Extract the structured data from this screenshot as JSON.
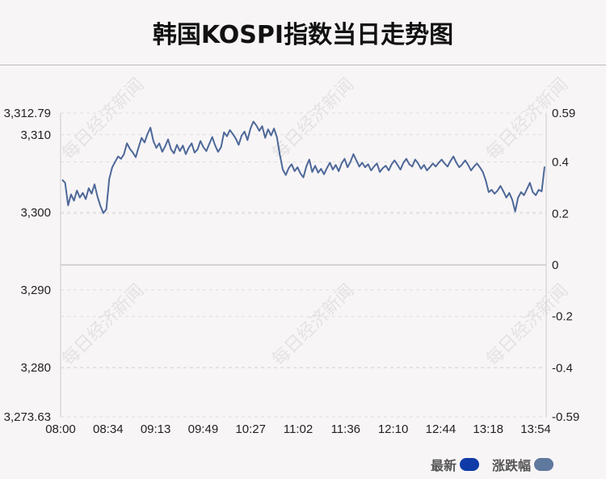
{
  "title": "韩国KOSPI指数当日走势图",
  "watermark_text": "每日经济新闻",
  "legend": [
    {
      "label": "最新",
      "color": "#0f3aa8"
    },
    {
      "label": "涨跌幅",
      "color": "#5f789e"
    }
  ],
  "colors": {
    "line": "#4d6898",
    "grid": "#dedede",
    "zero_line": "#c8c8c8",
    "axis": "#cccccc",
    "text": "#222222"
  },
  "chart_data": {
    "type": "line",
    "title": "韩国KOSPI指数当日走势图",
    "x_tick_labels": [
      "08:00",
      "08:34",
      "09:13",
      "09:49",
      "10:27",
      "11:02",
      "11:36",
      "12:10",
      "12:44",
      "13:18",
      "13:54"
    ],
    "y_left": {
      "ticks": [
        "3,312.79",
        "3,310",
        "3,300",
        "3,290",
        "3,280",
        "3,273.63"
      ],
      "tick_values": [
        3312.79,
        3310,
        3300,
        3290,
        3280,
        3273.63
      ],
      "range": [
        3273.63,
        3312.79
      ]
    },
    "y_right": {
      "ticks": [
        "0.59",
        "0.4",
        "0.2",
        "0",
        "-0.2",
        "-0.4",
        "-0.59"
      ],
      "tick_values": [
        0.59,
        0.4,
        0.2,
        0,
        -0.2,
        -0.4,
        -0.59
      ],
      "range": [
        -0.59,
        0.59
      ],
      "unit": "%"
    },
    "grid": true,
    "series": [
      {
        "name": "最新",
        "x_start": "08:00",
        "x_end": "13:54",
        "values": [
          3304.2,
          3303.8,
          3300.9,
          3302.3,
          3301.5,
          3302.8,
          3301.9,
          3302.5,
          3301.7,
          3303.1,
          3302.4,
          3303.6,
          3302.0,
          3300.8,
          3299.9,
          3300.4,
          3304.3,
          3305.8,
          3306.5,
          3307.2,
          3306.9,
          3307.5,
          3308.9,
          3308.2,
          3307.7,
          3307.1,
          3308.4,
          3309.6,
          3309.0,
          3310.1,
          3310.9,
          3309.2,
          3308.3,
          3308.9,
          3307.8,
          3308.5,
          3309.4,
          3308.1,
          3307.6,
          3308.7,
          3307.9,
          3308.6,
          3307.5,
          3308.3,
          3308.9,
          3307.7,
          3308.1,
          3309.2,
          3308.4,
          3307.9,
          3308.8,
          3309.7,
          3308.6,
          3307.8,
          3308.4,
          3310.3,
          3309.8,
          3310.6,
          3310.1,
          3309.5,
          3308.7,
          3309.9,
          3310.4,
          3309.3,
          3310.8,
          3311.7,
          3311.2,
          3310.5,
          3311.1,
          3309.6,
          3310.7,
          3309.9,
          3310.8,
          3309.7,
          3307.4,
          3305.5,
          3304.8,
          3305.7,
          3306.2,
          3305.3,
          3305.8,
          3305.0,
          3304.5,
          3305.9,
          3306.8,
          3305.2,
          3306.0,
          3305.1,
          3305.6,
          3304.9,
          3305.7,
          3306.4,
          3305.5,
          3306.1,
          3305.3,
          3306.3,
          3306.9,
          3305.8,
          3306.5,
          3307.5,
          3306.7,
          3305.9,
          3306.4,
          3305.8,
          3306.2,
          3305.4,
          3305.9,
          3306.3,
          3305.2,
          3305.7,
          3306.0,
          3305.4,
          3306.2,
          3306.7,
          3306.1,
          3305.5,
          3306.4,
          3306.9,
          3306.2,
          3305.9,
          3306.8,
          3306.3,
          3305.6,
          3306.1,
          3305.4,
          3305.8,
          3306.3,
          3305.9,
          3306.4,
          3306.8,
          3306.3,
          3305.9,
          3306.6,
          3307.2,
          3306.4,
          3305.8,
          3306.2,
          3306.7,
          3306.1,
          3305.4,
          3305.9,
          3306.3,
          3305.8,
          3305.2,
          3304.1,
          3302.6,
          3302.9,
          3302.4,
          3302.8,
          3303.4,
          3302.7,
          3301.9,
          3302.5,
          3301.6,
          3300.1,
          3301.9,
          3302.6,
          3302.2,
          3303.0,
          3303.8,
          3302.6,
          3302.2,
          3302.9,
          3302.7,
          3305.9
        ]
      }
    ]
  }
}
